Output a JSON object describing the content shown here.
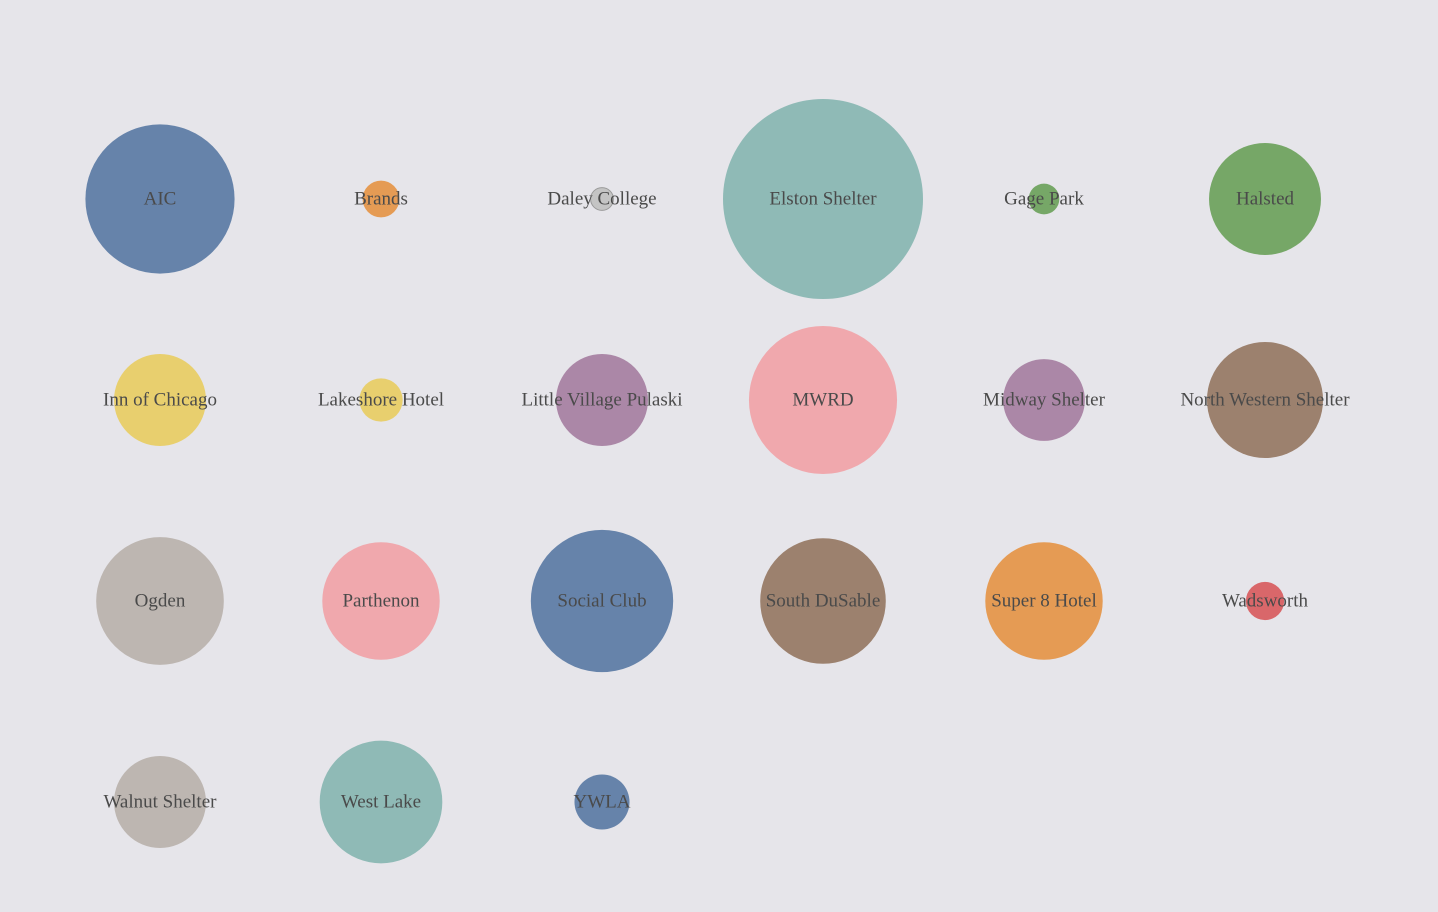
{
  "chart_data": {
    "type": "bubble-grid",
    "title": "",
    "items": [
      {
        "label": "AIC",
        "value": 21.3,
        "color": "#6683aa"
      },
      {
        "label": "Brands",
        "value": 1.3,
        "color": "#e59b54"
      },
      {
        "label": "Daley College",
        "value": 0.5,
        "color": "#c4c4c4"
      },
      {
        "label": "Elston Shelter",
        "value": 38.3,
        "color": "#8fbab6"
      },
      {
        "label": "Gage Park",
        "value": 0.9,
        "color": "#76a767"
      },
      {
        "label": "Halsted",
        "value": 12.0,
        "color": "#76a767"
      },
      {
        "label": "Inn of Chicago",
        "value": 8.1,
        "color": "#e8cf6e"
      },
      {
        "label": "Lakeshore Hotel",
        "value": 1.8,
        "color": "#e8cf6e"
      },
      {
        "label": "Little Village Pulaski",
        "value": 8.1,
        "color": "#ab87a7"
      },
      {
        "label": "MWRD",
        "value": 21.0,
        "color": "#f0a8ad"
      },
      {
        "label": "Midway Shelter",
        "value": 6.4,
        "color": "#ab87a7"
      },
      {
        "label": "North Western Shelter",
        "value": 12.9,
        "color": "#9c816e"
      },
      {
        "label": "Ogden",
        "value": 15.6,
        "color": "#bdb6b1"
      },
      {
        "label": "Parthenon",
        "value": 13.2,
        "color": "#f0a8ad"
      },
      {
        "label": "Social Club",
        "value": 19.4,
        "color": "#6683aa"
      },
      {
        "label": "South DuSable",
        "value": 15.1,
        "color": "#9c816e"
      },
      {
        "label": "Super 8 Hotel",
        "value": 13.2,
        "color": "#e59b54"
      },
      {
        "label": "Wadsworth",
        "value": 1.4,
        "color": "#d9676a"
      },
      {
        "label": "Walnut Shelter",
        "value": 8.1,
        "color": "#bdb6b1"
      },
      {
        "label": "West Lake",
        "value": 14.4,
        "color": "#8fbab6"
      },
      {
        "label": "YWLA",
        "value": 2.9,
        "color": "#6683aa"
      }
    ]
  }
}
